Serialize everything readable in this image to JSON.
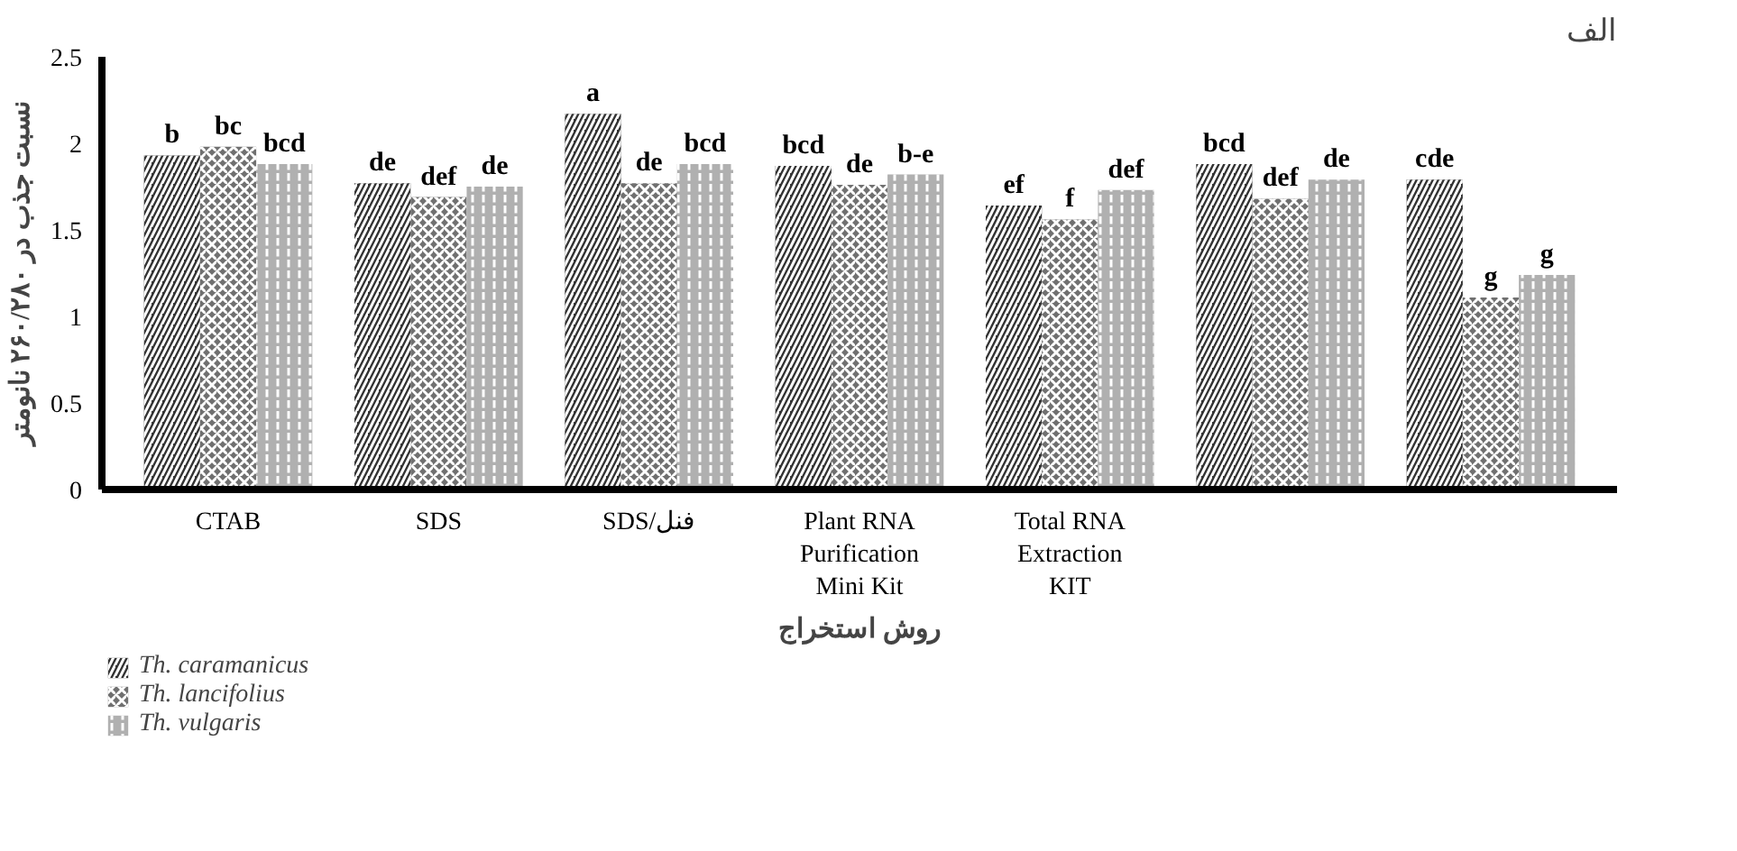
{
  "chart_data": {
    "type": "bar",
    "xlabel": "روش استخراج",
    "ylabel": "نسبت جذب در ۲۶۰/۲۸۰ نانومتر",
    "annotations": [
      "الف"
    ],
    "categories": [
      "CTAB",
      "SDS",
      "SDS/فنل",
      "Plant RNA Purification Mini Kit",
      "Total RNA Extraction KIT",
      null,
      null
    ],
    "ylim": [
      0,
      2.5
    ],
    "yticks": [
      0,
      0.5,
      1,
      1.5,
      2,
      2.5
    ],
    "grid": false,
    "legend": "bottom left",
    "series": [
      {
        "name": "Th. caramanicus",
        "color": "#333333",
        "values": [
          1.93,
          1.77,
          2.17,
          1.87,
          1.64,
          1.88,
          1.79
        ],
        "value_labels": [
          "b",
          "de",
          "a",
          "bcd",
          "ef",
          "bcd",
          "cde"
        ]
      },
      {
        "name": "Th. lancifolius",
        "color": "#707070",
        "values": [
          1.98,
          1.69,
          1.77,
          1.76,
          1.56,
          1.68,
          1.11
        ],
        "value_labels": [
          "bc",
          "def",
          "de",
          "de",
          "f",
          "def",
          "g"
        ]
      },
      {
        "name": "Th. vulgaris",
        "color": "#b0b0b0",
        "values": [
          1.88,
          1.75,
          1.88,
          1.82,
          1.73,
          1.79,
          1.24
        ],
        "value_labels": [
          "bcd",
          "de",
          "bcd",
          "b-e",
          "def",
          "de",
          "g"
        ]
      }
    ]
  }
}
